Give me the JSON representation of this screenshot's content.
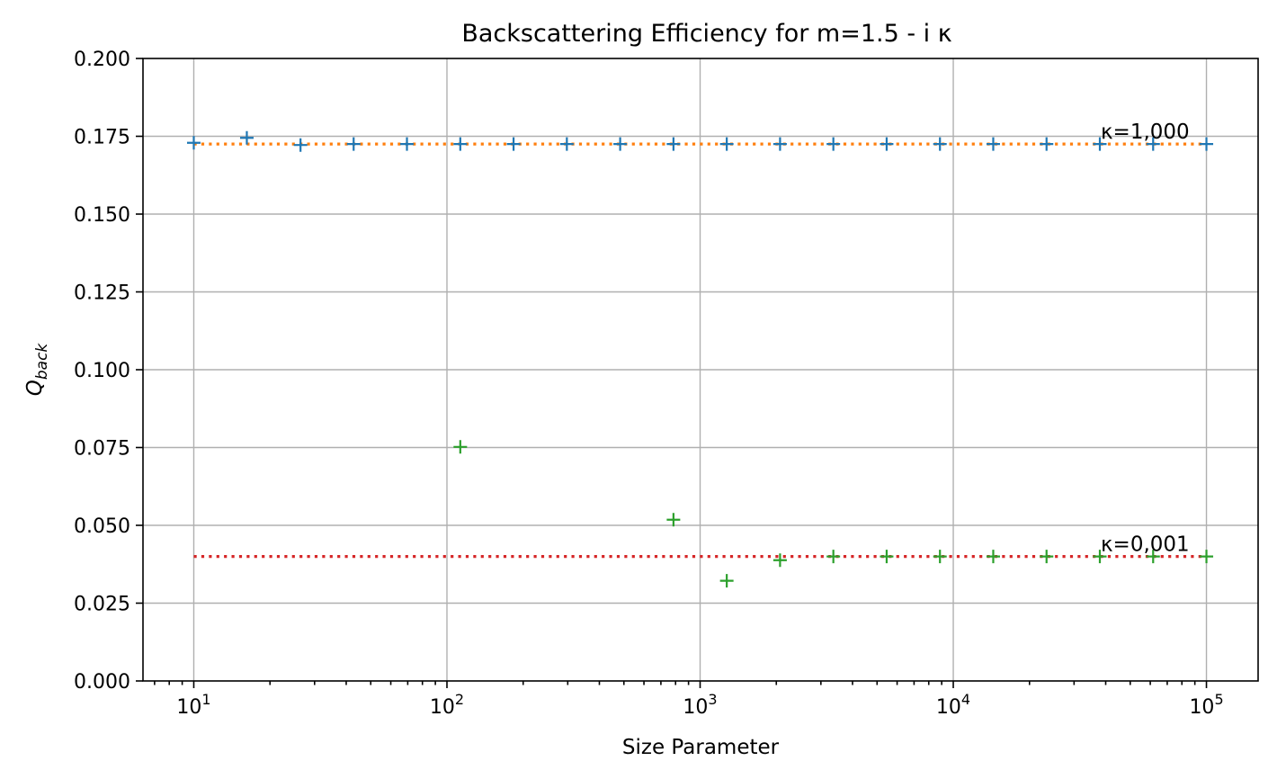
{
  "chart_data": {
    "type": "scatter",
    "title": "Backscattering Efficiency for m=1.5 - i κ",
    "xlabel": "Size Parameter",
    "ylabel": {
      "base": "Q",
      "sub": "back"
    },
    "xscale": "log",
    "xlim": [
      6.3,
      160000
    ],
    "ylim": [
      0.0,
      0.2
    ],
    "grid": true,
    "yticks": [
      0.0,
      0.025,
      0.05,
      0.075,
      0.1,
      0.125,
      0.15,
      0.175,
      0.2
    ],
    "ytick_labels": [
      "0.000",
      "0.025",
      "0.050",
      "0.075",
      "0.100",
      "0.125",
      "0.150",
      "0.175",
      "0.200"
    ],
    "xticks": [
      10,
      100,
      1000,
      10000,
      100000
    ],
    "xtick_labels": [
      {
        "base": "10",
        "exp": "1"
      },
      {
        "base": "10",
        "exp": "2"
      },
      {
        "base": "10",
        "exp": "3"
      },
      {
        "base": "10",
        "exp": "4"
      },
      {
        "base": "10",
        "exp": "5"
      }
    ],
    "x": [
      10,
      16.2,
      26.4,
      42.8,
      69.5,
      112.9,
      183.3,
      297.6,
      483.3,
      784.8,
      1274.3,
      2069.1,
      3359.8,
      5455.6,
      8858.7,
      14384.5,
      23357.2,
      37926.9,
      61584.8,
      100000
    ],
    "series": [
      {
        "marker": "+",
        "color": "#1f77b4",
        "values": [
          0.1729,
          0.1745,
          0.1722,
          0.1725,
          0.1725,
          0.1725,
          0.1725,
          0.1725,
          0.1725,
          0.1725,
          0.1725,
          0.1725,
          0.1725,
          0.1725,
          0.1725,
          0.1725,
          0.1725,
          0.1725,
          0.1725,
          0.1725
        ]
      },
      {
        "marker": "+",
        "color": "#2ca02c",
        "values": [
          null,
          null,
          null,
          null,
          null,
          0.0752,
          null,
          null,
          null,
          0.0518,
          0.0322,
          0.0388,
          0.04,
          0.04,
          0.04,
          0.04,
          0.04,
          0.04,
          0.04,
          0.04
        ]
      }
    ],
    "reference_lines": [
      {
        "y": 0.1725,
        "x_range": [
          10,
          100000
        ],
        "style": "dotted",
        "color": "#ff7f0e"
      },
      {
        "y": 0.04,
        "x_range": [
          10,
          100000
        ],
        "style": "dotted",
        "color": "#d62728"
      }
    ],
    "annotations": [
      {
        "text": "κ=1,000",
        "x": 37926.9,
        "y": 0.1725
      },
      {
        "text": "κ=0,001",
        "x": 37926.9,
        "y": 0.04
      }
    ]
  }
}
